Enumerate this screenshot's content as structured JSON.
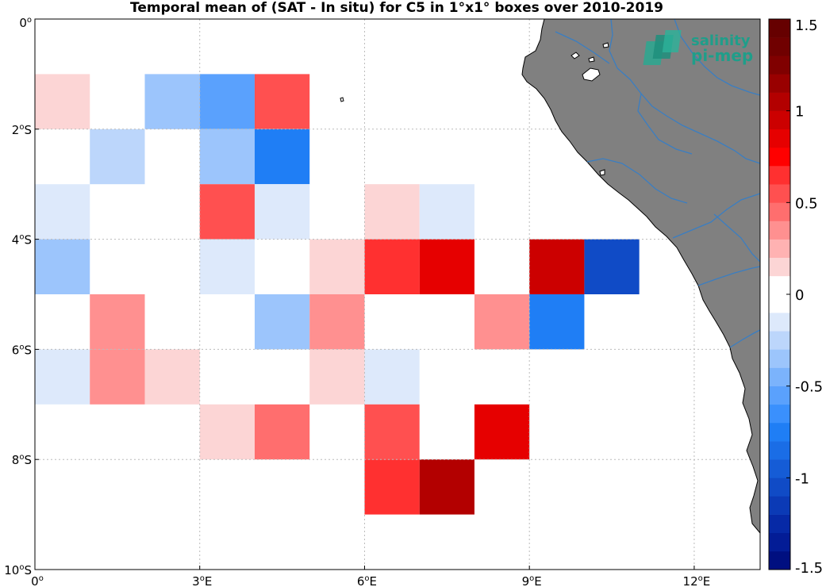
{
  "title": "Temporal mean of (SAT - In situ) for C5 in 1°x1° boxes over 2010-2019",
  "logo": {
    "line1": "salinity",
    "line2": "pi-mep",
    "color": "#1f9e8a"
  },
  "colors": {
    "land": "#808080",
    "river": "#3a7ec2",
    "grid": "#bbbbbb"
  },
  "map_data": {
    "lon_range": [
      0,
      13.2
    ],
    "lat_range": [
      -10,
      0
    ],
    "x_ticks": [
      {
        "value": 0,
        "label": "0",
        "sup": "o",
        "suffix": ""
      },
      {
        "value": 3,
        "label": "3",
        "sup": "o",
        "suffix": "E"
      },
      {
        "value": 6,
        "label": "6",
        "sup": "o",
        "suffix": "E"
      },
      {
        "value": 9,
        "label": "9",
        "sup": "o",
        "suffix": "E"
      },
      {
        "value": 12,
        "label": "12",
        "sup": "o",
        "suffix": "E"
      }
    ],
    "y_ticks": [
      {
        "value": 0,
        "label": "0",
        "sup": "o",
        "suffix": ""
      },
      {
        "value": -2,
        "label": "2",
        "sup": "o",
        "suffix": "S"
      },
      {
        "value": -4,
        "label": "4",
        "sup": "o",
        "suffix": "S"
      },
      {
        "value": -6,
        "label": "6",
        "sup": "o",
        "suffix": "S"
      },
      {
        "value": -8,
        "label": "8",
        "sup": "o",
        "suffix": "S"
      },
      {
        "value": -10,
        "label": "10",
        "sup": "o",
        "suffix": "S"
      }
    ],
    "boxes": [
      {
        "lon": 0,
        "lat": -2,
        "value": 0.15
      },
      {
        "lon": 2,
        "lat": -2,
        "value": -0.35
      },
      {
        "lon": 3,
        "lat": -2,
        "value": -0.5
      },
      {
        "lon": 4,
        "lat": -2,
        "value": 0.55
      },
      {
        "lon": 1,
        "lat": -3,
        "value": -0.25
      },
      {
        "lon": 3,
        "lat": -3,
        "value": -0.3
      },
      {
        "lon": 4,
        "lat": -3,
        "value": -0.75
      },
      {
        "lon": 0,
        "lat": -4,
        "value": -0.1
      },
      {
        "lon": 3,
        "lat": -4,
        "value": 0.55
      },
      {
        "lon": 4,
        "lat": -4,
        "value": -0.1
      },
      {
        "lon": 6,
        "lat": -4,
        "value": 0.15
      },
      {
        "lon": 7,
        "lat": -4,
        "value": -0.1
      },
      {
        "lon": 0,
        "lat": -5,
        "value": -0.3
      },
      {
        "lon": 3,
        "lat": -5,
        "value": -0.1
      },
      {
        "lon": 5,
        "lat": -5,
        "value": 0.15
      },
      {
        "lon": 6,
        "lat": -5,
        "value": 0.65
      },
      {
        "lon": 7,
        "lat": -5,
        "value": 0.85
      },
      {
        "lon": 9,
        "lat": -5,
        "value": 0.9
      },
      {
        "lon": 10,
        "lat": -5,
        "value": -1.0
      },
      {
        "lon": 1,
        "lat": -6,
        "value": 0.3
      },
      {
        "lon": 4,
        "lat": -6,
        "value": -0.35
      },
      {
        "lon": 5,
        "lat": -6,
        "value": 0.3
      },
      {
        "lon": 8,
        "lat": -6,
        "value": 0.3
      },
      {
        "lon": 9,
        "lat": -6,
        "value": -0.7
      },
      {
        "lon": 0,
        "lat": -7,
        "value": -0.1
      },
      {
        "lon": 1,
        "lat": -7,
        "value": 0.3
      },
      {
        "lon": 2,
        "lat": -7,
        "value": 0.15
      },
      {
        "lon": 5,
        "lat": -7,
        "value": 0.15
      },
      {
        "lon": 6,
        "lat": -7,
        "value": -0.1
      },
      {
        "lon": 3,
        "lat": -8,
        "value": 0.15
      },
      {
        "lon": 4,
        "lat": -8,
        "value": 0.45
      },
      {
        "lon": 6,
        "lat": -8,
        "value": 0.55
      },
      {
        "lon": 8,
        "lat": -8,
        "value": 0.85
      },
      {
        "lon": 6,
        "lat": -9,
        "value": 0.65
      },
      {
        "lon": 7,
        "lat": -9,
        "value": 1.05
      }
    ]
  },
  "colorbar": {
    "min": -1.5,
    "max": 1.5,
    "step": 0.1,
    "ticks": [
      {
        "value": 1.5,
        "label": "1.5"
      },
      {
        "value": 1,
        "label": "1"
      },
      {
        "value": 0.5,
        "label": "0.5"
      },
      {
        "value": 0,
        "label": "0"
      },
      {
        "value": -0.5,
        "label": "-0.5"
      },
      {
        "value": -1,
        "label": "-1"
      },
      {
        "value": -1.5,
        "label": "-1.5"
      }
    ]
  }
}
